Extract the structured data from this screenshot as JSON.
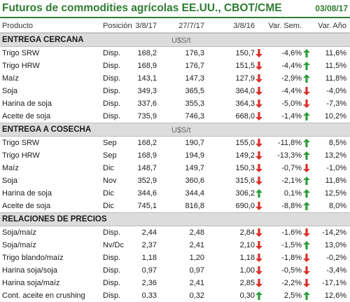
{
  "header": {
    "title": "Futuros de commodities agrícolas EE.UU., CBOT/CME",
    "date": "03/08/17"
  },
  "columns": [
    "Producto",
    "Posición",
    "3/8/17",
    "27/7/17",
    "3/8/16",
    "Var. Sem.",
    "Var. Año"
  ],
  "sections": [
    {
      "label": "ENTREGA CERCANA",
      "unit": "U$S/t",
      "rows": [
        {
          "producto": "Trigo SRW",
          "posicion": "Disp.",
          "v1": "168,2",
          "v2": "176,3",
          "v3": "150,7",
          "sem": "-4,6%",
          "anio": "11,6%",
          "sem_dir": "down",
          "anio_dir": "up"
        },
        {
          "producto": "Trigo HRW",
          "posicion": "Disp.",
          "v1": "168,9",
          "v2": "176,7",
          "v3": "151,5",
          "sem": "-4,4%",
          "anio": "11,5%",
          "sem_dir": "down",
          "anio_dir": "up"
        },
        {
          "producto": "Maíz",
          "posicion": "Disp.",
          "v1": "143,1",
          "v2": "147,3",
          "v3": "127,9",
          "sem": "-2,9%",
          "anio": "11,8%",
          "sem_dir": "down",
          "anio_dir": "up"
        },
        {
          "producto": "Soja",
          "posicion": "Disp.",
          "v1": "349,3",
          "v2": "365,5",
          "v3": "364,0",
          "sem": "-4,4%",
          "anio": "-4,0%",
          "sem_dir": "down",
          "anio_dir": "down"
        },
        {
          "producto": "Harina de soja",
          "posicion": "Disp.",
          "v1": "337,6",
          "v2": "355,3",
          "v3": "364,3",
          "sem": "-5,0%",
          "anio": "-7,3%",
          "sem_dir": "down",
          "anio_dir": "down"
        },
        {
          "producto": "Aceite de soja",
          "posicion": "Disp.",
          "v1": "735,9",
          "v2": "746,3",
          "v3": "668,0",
          "sem": "-1,4%",
          "anio": "10,2%",
          "sem_dir": "down",
          "anio_dir": "up"
        }
      ]
    },
    {
      "label": "ENTREGA A COSECHA",
      "unit": "U$S/t",
      "rows": [
        {
          "producto": "Trigo SRW",
          "posicion": "Sep",
          "v1": "168,2",
          "v2": "190,7",
          "v3": "155,0",
          "sem": "-11,8%",
          "anio": "8,5%",
          "sem_dir": "down",
          "anio_dir": "up"
        },
        {
          "producto": "Trigo HRW",
          "posicion": "Sep",
          "v1": "168,9",
          "v2": "194,9",
          "v3": "149,2",
          "sem": "-13,3%",
          "anio": "13,2%",
          "sem_dir": "down",
          "anio_dir": "up"
        },
        {
          "producto": "Maíz",
          "posicion": "Dic",
          "v1": "148,7",
          "v2": "149,7",
          "v3": "150,3",
          "sem": "-0,7%",
          "anio": "-1,0%",
          "sem_dir": "down",
          "anio_dir": "down"
        },
        {
          "producto": "Soja",
          "posicion": "Nov",
          "v1": "352,9",
          "v2": "360,6",
          "v3": "315,6",
          "sem": "-2,1%",
          "anio": "11,8%",
          "sem_dir": "down",
          "anio_dir": "up"
        },
        {
          "producto": "Harina de soja",
          "posicion": "Dic",
          "v1": "344,6",
          "v2": "344,4",
          "v3": "306,2",
          "sem": "0,1%",
          "anio": "12,5%",
          "sem_dir": "up",
          "anio_dir": "up"
        },
        {
          "producto": "Aceite de soja",
          "posicion": "Dic",
          "v1": "745,1",
          "v2": "816,8",
          "v3": "690,0",
          "sem": "-8,8%",
          "anio": "8,0%",
          "sem_dir": "down",
          "anio_dir": "up"
        }
      ]
    },
    {
      "label": "RELACIONES DE PRECIOS",
      "unit": "",
      "rows": [
        {
          "producto": "Soja/maíz",
          "posicion": "Disp.",
          "v1": "2,44",
          "v2": "2,48",
          "v3": "2,84",
          "sem": "-1,6%",
          "anio": "-14,2%",
          "sem_dir": "down",
          "anio_dir": "down"
        },
        {
          "producto": "Soja/maíz",
          "posicion": "Nv/Dc",
          "v1": "2,37",
          "v2": "2,41",
          "v3": "2,10",
          "sem": "-1,5%",
          "anio": "13,0%",
          "sem_dir": "down",
          "anio_dir": "up"
        },
        {
          "producto": "Trigo blando/maíz",
          "posicion": "Disp.",
          "v1": "1,18",
          "v2": "1,20",
          "v3": "1,18",
          "sem": "-1,8%",
          "anio": "-0,2%",
          "sem_dir": "down",
          "anio_dir": "down"
        },
        {
          "producto": "Harina soja/soja",
          "posicion": "Disp.",
          "v1": "0,97",
          "v2": "0,97",
          "v3": "1,00",
          "sem": "-0,5%",
          "anio": "-3,4%",
          "sem_dir": "down",
          "anio_dir": "down"
        },
        {
          "producto": "Harina soja/maíz",
          "posicion": "Disp.",
          "v1": "2,36",
          "v2": "2,41",
          "v3": "2,85",
          "sem": "-2,2%",
          "anio": "-17,1%",
          "sem_dir": "down",
          "anio_dir": "down"
        },
        {
          "producto": "Cont. aceite en crushing",
          "posicion": "Disp.",
          "v1": "0,33",
          "v2": "0,32",
          "v3": "0,30",
          "sem": "2,5%",
          "anio": "12,6%",
          "sem_dir": "up",
          "anio_dir": "up"
        }
      ]
    }
  ],
  "colors": {
    "title": "#2e7d32",
    "up_arrow": "#2e9e3a",
    "down_arrow": "#d9322b",
    "section_bg": "#dcdcdc"
  }
}
